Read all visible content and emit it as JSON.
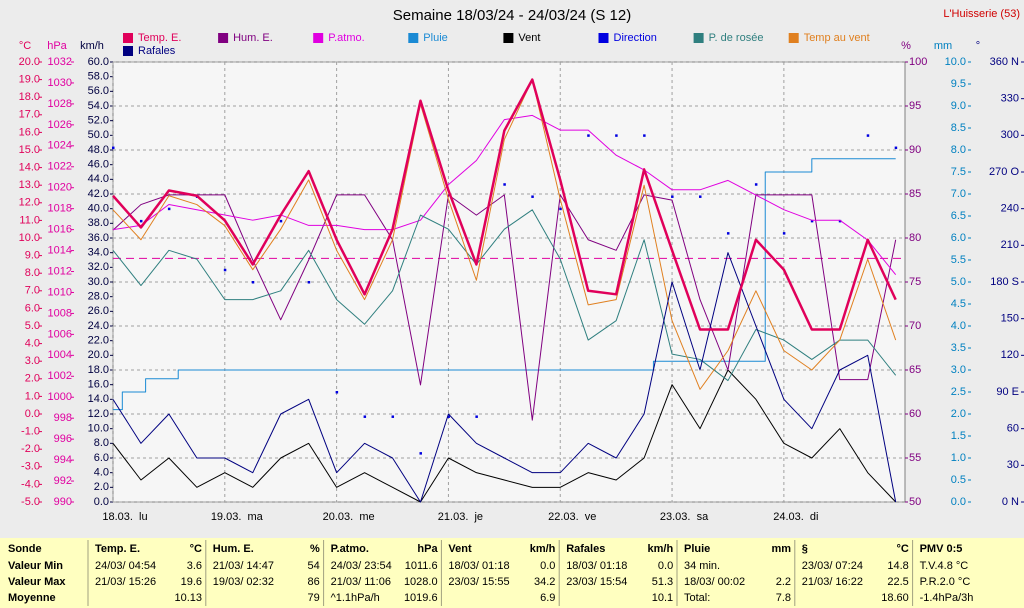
{
  "chart_data": {
    "type": "line",
    "title": "Semaine 18/03/24 - 24/03/24 (S 12)",
    "location": "L'Huisserie (53)",
    "xlim": [
      0,
      170
    ],
    "xticks": [
      {
        "value": 0,
        "label": "18.03.  lu"
      },
      {
        "value": 24,
        "label": "19.03.  ma"
      },
      {
        "value": 48,
        "label": "20.03.  me"
      },
      {
        "value": 72,
        "label": "21.03.  je"
      },
      {
        "value": 96,
        "label": "22.03.  ve"
      },
      {
        "value": 120,
        "label": "23.03.  sa"
      },
      {
        "value": 144,
        "label": "24.03.  di"
      }
    ],
    "x": [
      0,
      6,
      12,
      18,
      24,
      30,
      36,
      42,
      48,
      54,
      60,
      66,
      72,
      78,
      84,
      90,
      96,
      102,
      108,
      114,
      120,
      126,
      132,
      138,
      144,
      150,
      156,
      162,
      168
    ],
    "grid": true,
    "grid_axis": 3,
    "axes": [
      {
        "unit": "°C",
        "color": "#e0005a",
        "lim": [
          -5,
          20
        ],
        "ticks": [
          {
            "value": 20,
            "label": "20.0"
          },
          {
            "value": 19,
            "label": "19.0"
          },
          {
            "value": 18,
            "label": "18.0"
          },
          {
            "value": 17,
            "label": "17.0"
          },
          {
            "value": 16,
            "label": "16.0"
          },
          {
            "value": 15,
            "label": "15.0"
          },
          {
            "value": 14,
            "label": "14.0"
          },
          {
            "value": 13,
            "label": "13.0"
          },
          {
            "value": 12,
            "label": "12.0"
          },
          {
            "value": 11,
            "label": "11.0"
          },
          {
            "value": 10,
            "label": "10.0"
          },
          {
            "value": 9,
            "label": "9.0"
          },
          {
            "value": 8,
            "label": "8.0"
          },
          {
            "value": 7,
            "label": "7.0"
          },
          {
            "value": 6,
            "label": "6.0"
          },
          {
            "value": 5,
            "label": "5.0"
          },
          {
            "value": 4,
            "label": "4.0"
          },
          {
            "value": 3,
            "label": "3.0"
          },
          {
            "value": 2,
            "label": "2.0"
          },
          {
            "value": 1,
            "label": "1.0"
          },
          {
            "value": 0,
            "label": "0.0"
          },
          {
            "value": -1,
            "label": "-1.0"
          },
          {
            "value": -2,
            "label": "-2.0"
          },
          {
            "value": -3,
            "label": "-3.0"
          },
          {
            "value": -4,
            "label": "-4.0"
          },
          {
            "value": -5,
            "label": "-5.0"
          }
        ]
      },
      {
        "unit": "hPa",
        "color": "#e000a0",
        "lim": [
          990,
          1032
        ],
        "ticks": [
          1032,
          1030,
          1028,
          1026,
          1024,
          1022,
          1020,
          1018,
          1016,
          1014,
          1012,
          1010,
          1008,
          1006,
          1004,
          1002,
          1000,
          998,
          996,
          994,
          992,
          990
        ]
      },
      {
        "unit": "km/h",
        "color": "#000040",
        "lim": [
          0,
          60
        ],
        "ticks": [
          {
            "value": 60,
            "label": "60.0"
          },
          {
            "value": 58,
            "label": "58.0"
          },
          {
            "value": 56,
            "label": "56.0"
          },
          {
            "value": 54,
            "label": "54.0"
          },
          {
            "value": 52,
            "label": "52.0"
          },
          {
            "value": 50,
            "label": "50.0"
          },
          {
            "value": 48,
            "label": "48.0"
          },
          {
            "value": 46,
            "label": "46.0"
          },
          {
            "value": 44,
            "label": "44.0"
          },
          {
            "value": 42,
            "label": "42.0"
          },
          {
            "value": 40,
            "label": "40.0"
          },
          {
            "value": 38,
            "label": "38.0"
          },
          {
            "value": 36,
            "label": "36.0"
          },
          {
            "value": 34,
            "label": "34.0"
          },
          {
            "value": 32,
            "label": "32.0"
          },
          {
            "value": 30,
            "label": "30.0"
          },
          {
            "value": 28,
            "label": "28.0"
          },
          {
            "value": 26,
            "label": "26.0"
          },
          {
            "value": 24,
            "label": "24.0"
          },
          {
            "value": 22,
            "label": "22.0"
          },
          {
            "value": 20,
            "label": "20.0"
          },
          {
            "value": 18,
            "label": "18.0"
          },
          {
            "value": 16,
            "label": "16.0"
          },
          {
            "value": 14,
            "label": "14.0"
          },
          {
            "value": 12,
            "label": "12.0"
          },
          {
            "value": 10,
            "label": "10.0"
          },
          {
            "value": 8,
            "label": "8.0"
          },
          {
            "value": 6,
            "label": "6.0"
          },
          {
            "value": 4,
            "label": "4.0"
          },
          {
            "value": 2,
            "label": "2.0"
          },
          {
            "value": 0,
            "label": "0.0"
          }
        ]
      },
      {
        "unit": "%",
        "color": "#800080",
        "lim": [
          50,
          100
        ],
        "ticks": [
          100,
          95,
          90,
          85,
          80,
          75,
          70,
          65,
          60,
          55,
          50
        ]
      },
      {
        "unit": "mm",
        "color": "#0080c0",
        "lim": [
          0,
          10
        ],
        "ticks": [
          {
            "value": 10,
            "label": "10.0"
          },
          9.5,
          {
            "value": 9,
            "label": "9.0"
          },
          8.5,
          {
            "value": 8,
            "label": "8.0"
          },
          7.5,
          {
            "value": 7,
            "label": "7.0"
          },
          6.5,
          {
            "value": 6,
            "label": "6.0"
          },
          5.5,
          {
            "value": 5,
            "label": "5.0"
          },
          4.5,
          {
            "value": 4,
            "label": "4.0"
          },
          3.5,
          {
            "value": 3,
            "label": "3.0"
          },
          2.5,
          {
            "value": 2,
            "label": "2.0"
          },
          1.5,
          {
            "value": 1,
            "label": "1.0"
          },
          0.5,
          {
            "value": 0,
            "label": "0.0"
          }
        ]
      },
      {
        "unit": "°",
        "color": "#000080",
        "lim": [
          0,
          360
        ],
        "ticks": [
          {
            "value": 360,
            "label": "360 N"
          },
          330,
          300,
          {
            "value": 270,
            "label": "270 O"
          },
          240,
          210,
          {
            "value": 180,
            "label": "180 S"
          },
          150,
          120,
          {
            "value": 90,
            "label": "90 E"
          },
          60,
          30,
          {
            "value": 0,
            "label": "0 N"
          }
        ]
      }
    ],
    "reference_lines": [
      {
        "axis": 1,
        "value": 1013.25,
        "color": "#e000a0"
      }
    ],
    "series": [
      {
        "name": "Temp. E.",
        "color": "#e0005a",
        "axis": 0,
        "width": 2.5,
        "values": [
          12.4,
          10.6,
          12.7,
          12.4,
          11.0,
          8.5,
          11.3,
          13.8,
          9.9,
          6.8,
          10.5,
          17.8,
          12.7,
          8.5,
          16.1,
          19.0,
          13.3,
          7.0,
          6.8,
          13.9,
          9.3,
          4.8,
          4.8,
          9.9,
          8.2,
          4.8,
          4.8,
          9.9,
          6.5
        ]
      },
      {
        "name": "Hum. E.",
        "color": "#800080",
        "axis": 3,
        "values": [
          80.9,
          83.8,
          84.9,
          84.9,
          84.9,
          77.5,
          70.7,
          77.5,
          84.9,
          84.9,
          79.8,
          63.3,
          84.9,
          82.6,
          84.9,
          59.3,
          84.9,
          79.8,
          78.6,
          84.9,
          84.3,
          73.0,
          65.0,
          84.9,
          84.9,
          84.9,
          63.9,
          63.9,
          79.8
        ]
      },
      {
        "name": "P.atmo.",
        "color": "#e000e0",
        "axis": 1,
        "values": [
          1016.0,
          1016.4,
          1018.4,
          1017.9,
          1017.4,
          1016.9,
          1017.4,
          1016.4,
          1016.4,
          1016.0,
          1016.0,
          1016.9,
          1020.3,
          1022.6,
          1026.5,
          1026.9,
          1025.5,
          1025.5,
          1023.1,
          1021.7,
          1019.8,
          1019.8,
          1020.7,
          1019.3,
          1017.9,
          1016.9,
          1016.9,
          1015.0,
          1011.7
        ]
      },
      {
        "name": "Pluie",
        "color": "#1a8ad4",
        "axis": 4,
        "step": true,
        "x": [
          0,
          2,
          7,
          14,
          116,
          140,
          150,
          168
        ],
        "values": [
          2.1,
          2.5,
          2.8,
          3.0,
          3.2,
          7.5,
          7.8,
          7.8
        ]
      },
      {
        "name": "Vent",
        "color": "#000000",
        "axis": 2,
        "values": [
          8,
          3,
          6,
          2,
          4,
          2,
          6,
          8,
          2,
          4,
          2,
          0,
          6,
          4,
          3,
          2,
          2,
          4,
          3,
          6,
          16,
          10,
          18,
          14,
          8,
          6,
          10,
          4,
          0
        ]
      },
      {
        "name": "Direction",
        "color": "#0000e0",
        "axis": 5,
        "kind": "points",
        "values": [
          290,
          230,
          240,
          250,
          190,
          180,
          230,
          180,
          90,
          70,
          70,
          40,
          70,
          70,
          260,
          250,
          240,
          300,
          300,
          300,
          250,
          250,
          220,
          260,
          220,
          230,
          230,
          300,
          290
        ]
      },
      {
        "name": "P. de rosée",
        "color": "#2f7f7f",
        "axis": 0,
        "values": [
          9.3,
          7.3,
          9.3,
          8.8,
          6.5,
          6.5,
          7.0,
          9.3,
          6.5,
          5.1,
          7.0,
          11.3,
          10.5,
          8.5,
          10.5,
          11.6,
          8.8,
          4.2,
          5.3,
          9.9,
          3.4,
          3.1,
          1.9,
          4.8,
          4.2,
          3.1,
          4.2,
          4.2,
          2.2
        ]
      },
      {
        "name": "Temp au vent",
        "color": "#e08020",
        "axis": 0,
        "values": [
          11.6,
          9.9,
          12.4,
          11.9,
          10.7,
          8.2,
          10.5,
          13.3,
          9.3,
          6.5,
          9.9,
          17.6,
          12.2,
          7.6,
          15.6,
          19.0,
          12.2,
          6.2,
          6.5,
          13.0,
          5.3,
          1.4,
          3.6,
          7.0,
          3.6,
          2.5,
          4.2,
          8.8,
          4.2
        ]
      },
      {
        "name": "Rafales",
        "color": "#000080",
        "axis": 2,
        "values": [
          14,
          8,
          12,
          6,
          6,
          4,
          12,
          14,
          4,
          8,
          6,
          0,
          12,
          8,
          6,
          4,
          4,
          8,
          6,
          12,
          30,
          18,
          34,
          24,
          14,
          10,
          18,
          20,
          0
        ]
      }
    ]
  },
  "table": {
    "row_labels": [
      "Sonde",
      "Valeur Min",
      "Valeur Max",
      "Moyenne"
    ],
    "columns": [
      {
        "header": [
          "Temp. E.",
          "°C"
        ],
        "rows": [
          [
            "24/03/ 04:54",
            "3.6"
          ],
          [
            "21/03/ 15:26",
            "19.6"
          ],
          [
            "10.13"
          ]
        ]
      },
      {
        "header": [
          "Hum. E.",
          "%"
        ],
        "rows": [
          [
            "21/03/ 14:47",
            "54"
          ],
          [
            "19/03/ 02:32",
            "86"
          ],
          [
            "79"
          ]
        ]
      },
      {
        "header": [
          "P.atmo.",
          "hPa"
        ],
        "rows": [
          [
            "24/03/ 23:54",
            "1011.6"
          ],
          [
            "21/03/ 11:06",
            "1028.0"
          ],
          [
            "^1.1hPa/h",
            "1019.6"
          ]
        ]
      },
      {
        "header": [
          "Vent",
          "km/h"
        ],
        "rows": [
          [
            "18/03/ 01:18",
            "0.0"
          ],
          [
            "23/03/ 15:55",
            "34.2"
          ],
          [
            "6.9"
          ]
        ]
      },
      {
        "header": [
          "Rafales",
          "km/h"
        ],
        "rows": [
          [
            "18/03/ 01:18",
            "0.0"
          ],
          [
            "23/03/ 15:54",
            "51.3"
          ],
          [
            "10.1"
          ]
        ]
      },
      {
        "header": [
          "Pluie",
          "mm"
        ],
        "rows": [
          [
            "34 min."
          ],
          [
            "18/03/ 00:02",
            "2.2"
          ],
          [
            "Total:",
            "7.8"
          ]
        ]
      },
      {
        "header": [
          "§",
          "°C"
        ],
        "rows": [
          [
            "23/03/ 07:24",
            "14.8"
          ],
          [
            "21/03/ 16:22",
            "22.5"
          ],
          [
            "18.60"
          ]
        ]
      },
      {
        "header": [
          "PMV 0:5"
        ],
        "rows": [
          [
            "T.V.4.8 °C"
          ],
          [
            "P.R.2.0 °C"
          ],
          [
            "-1.4hPa/3h"
          ]
        ]
      }
    ]
  }
}
